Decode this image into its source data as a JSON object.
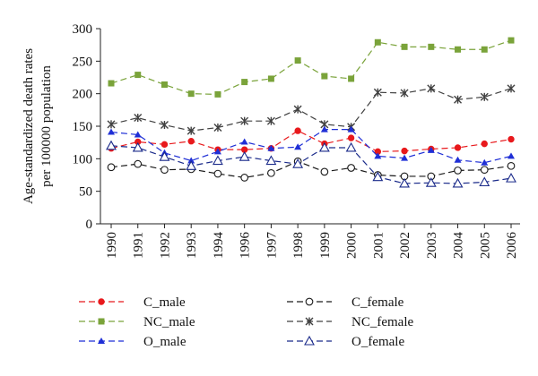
{
  "chart_data": {
    "type": "line",
    "ylabel_lines": [
      "Age-standardized death rates",
      "per 100000 population"
    ],
    "categories": [
      "1990",
      "1991",
      "1992",
      "1993",
      "1994",
      "1996",
      "1997",
      "1998",
      "1999",
      "2000",
      "2001",
      "2002",
      "2003",
      "2004",
      "2005",
      "2006"
    ],
    "ylim": [
      0,
      300
    ],
    "yticks": [
      0,
      50,
      100,
      150,
      200,
      250,
      300
    ],
    "grid": false,
    "legend_position": "bottom",
    "series": [
      {
        "name": "C_male",
        "color": "#e8191c",
        "marker": "circle-filled",
        "values": [
          116,
          126,
          122,
          127,
          114,
          114,
          116,
          143,
          123,
          132,
          111,
          112,
          115,
          117,
          123,
          130
        ]
      },
      {
        "name": "C_female",
        "color": "#1a1a1a",
        "marker": "circle-open",
        "values": [
          87,
          92,
          83,
          84,
          77,
          71,
          78,
          96,
          80,
          86,
          75,
          73,
          73,
          82,
          83,
          89
        ]
      },
      {
        "name": "NC_male",
        "color": "#7aa33a",
        "marker": "square-filled",
        "values": [
          216,
          229,
          214,
          200,
          199,
          218,
          223,
          251,
          227,
          223,
          279,
          272,
          272,
          268,
          268,
          282
        ]
      },
      {
        "name": "NC_female",
        "color": "#404040",
        "marker": "star",
        "values": [
          153,
          163,
          152,
          143,
          148,
          158,
          158,
          176,
          153,
          149,
          202,
          201,
          208,
          191,
          195,
          208
        ]
      },
      {
        "name": "O_male",
        "color": "#1f2fd6",
        "marker": "triangle-filled",
        "values": [
          141,
          137,
          109,
          97,
          111,
          126,
          116,
          118,
          145,
          145,
          104,
          101,
          113,
          98,
          94,
          104
        ]
      },
      {
        "name": "O_female",
        "color": "#1a2a8a",
        "marker": "triangle-open",
        "values": [
          120,
          117,
          103,
          89,
          97,
          103,
          97,
          92,
          117,
          117,
          72,
          62,
          63,
          62,
          64,
          70
        ]
      }
    ],
    "legend_order": [
      "C_male",
      "C_female",
      "NC_male",
      "NC_female",
      "O_male",
      "O_female"
    ]
  }
}
